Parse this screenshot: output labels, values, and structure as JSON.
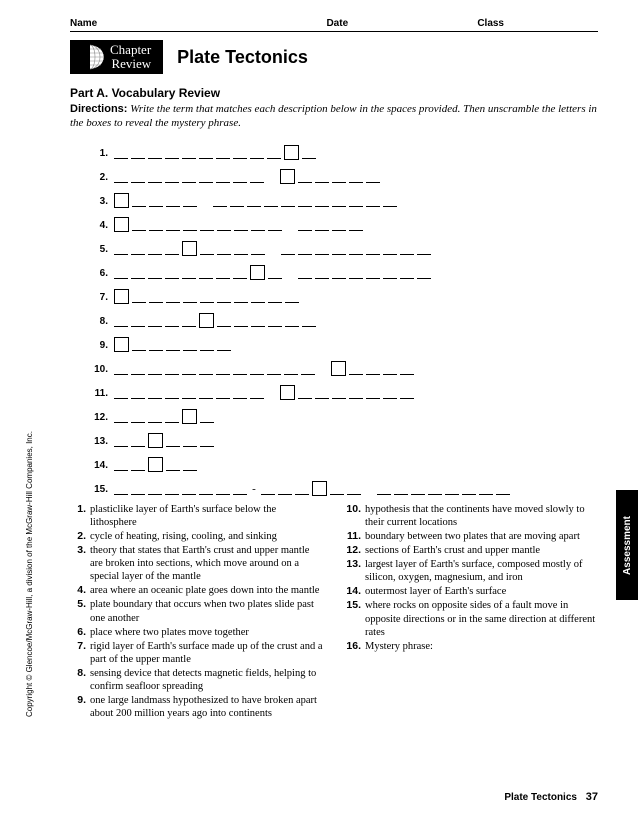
{
  "header": {
    "name": "Name",
    "date": "Date",
    "class": "Class"
  },
  "badge": {
    "line1": "Chapter",
    "line2": "Review"
  },
  "chapter_title": "Plate Tectonics",
  "part_title": "Part A. Vocabulary Review",
  "directions_label": "Directions:",
  "directions_text": "Write the term that matches each description below in the spaces provided. Then unscramble the letters in the boxes to reveal the mystery phrase.",
  "blank_rows": [
    {
      "n": "1.",
      "seq": "uuuuuuuuuuBu"
    },
    {
      "n": "2.",
      "seq": "uuuuuuuuusBuuuuu"
    },
    {
      "n": "3.",
      "seq": "Buuuusuuuuuuuuuuu"
    },
    {
      "n": "4.",
      "seq": "Buuuuuuuuusuuuu"
    },
    {
      "n": "5.",
      "seq": "uuuuBuuuusuuuuuuuuu"
    },
    {
      "n": "6.",
      "seq": "uuuuuuuuBusuuuuuuuu"
    },
    {
      "n": "7.",
      "seq": "Buuuuuuuuuu"
    },
    {
      "n": "8.",
      "seq": "uuuuuBuuuuuu"
    },
    {
      "n": "9.",
      "seq": "Buuuuuu"
    },
    {
      "n": "10.",
      "seq": "uuuuuuuuuuuusBuuuu"
    },
    {
      "n": "11.",
      "seq": "uuuuuuuuusBuuuuuuu"
    },
    {
      "n": "12.",
      "seq": "uuuuBu"
    },
    {
      "n": "13.",
      "seq": "uuBuuu"
    },
    {
      "n": "14.",
      "seq": "uuBuu"
    },
    {
      "n": "15.",
      "seq": "uuuuuuuu-uuuBuusuuuuuuuu"
    }
  ],
  "clues_left": [
    {
      "n": "1.",
      "t": "plasticlike layer of Earth's surface below the lithosphere"
    },
    {
      "n": "2.",
      "t": "cycle of heating, rising, cooling, and sinking"
    },
    {
      "n": "3.",
      "t": "theory that states that Earth's crust and upper mantle are broken into sections, which move around on a special layer of the mantle"
    },
    {
      "n": "4.",
      "t": "area where an oceanic plate goes down into the mantle"
    },
    {
      "n": "5.",
      "t": "plate boundary that occurs when two plates slide past one another"
    },
    {
      "n": "6.",
      "t": "place where two plates move together"
    },
    {
      "n": "7.",
      "t": "rigid layer of Earth's surface made up of the crust and a part of the upper mantle"
    },
    {
      "n": "8.",
      "t": "sensing device that detects magnetic fields, helping to confirm seafloor spreading"
    },
    {
      "n": "9.",
      "t": "one large landmass hypothesized to have broken apart about 200 million years ago into continents"
    }
  ],
  "clues_right": [
    {
      "n": "10.",
      "t": "hypothesis that the continents have moved slowly to their current locations"
    },
    {
      "n": "11.",
      "t": "boundary between two plates that are moving apart"
    },
    {
      "n": "12.",
      "t": "sections of Earth's crust and upper mantle"
    },
    {
      "n": "13.",
      "t": "largest layer of Earth's surface, composed mostly of silicon, oxygen, magnesium, and iron"
    },
    {
      "n": "14.",
      "t": "outermost layer of Earth's surface"
    },
    {
      "n": "15.",
      "t": "where rocks on opposite sides of a fault move in opposite directions or in the same direction at different rates"
    },
    {
      "n": "16.",
      "t": "Mystery phrase:"
    }
  ],
  "copyright": "Copyright © Glencoe/McGraw-Hill, a division of the McGraw-Hill Companies, Inc.",
  "side_tab": "Assessment",
  "footer_title": "Plate Tectonics",
  "footer_page": "37"
}
